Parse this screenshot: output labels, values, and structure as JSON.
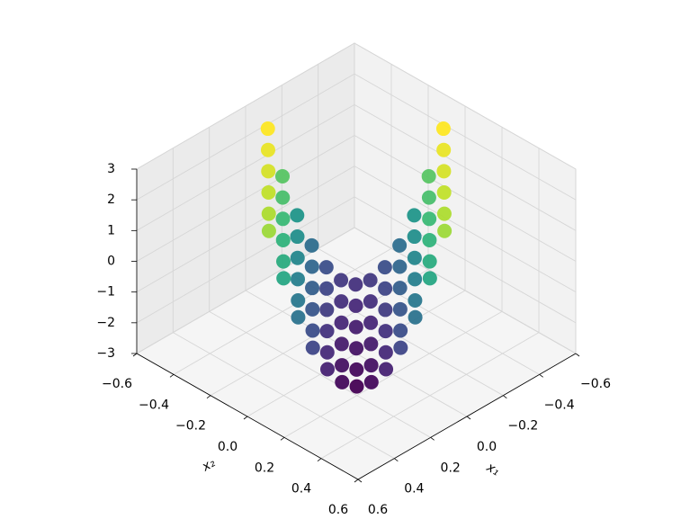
{
  "chart_data": {
    "type": "scatter3d",
    "xlabel": "x₁",
    "ylabel": "x₂",
    "xlim": [
      -0.6,
      0.6
    ],
    "ylim": [
      -0.6,
      0.6
    ],
    "zlim": [
      -3,
      3
    ],
    "xticks": [
      {
        "value": -0.6,
        "label": "−0.6"
      },
      {
        "value": -0.4,
        "label": "−0.4"
      },
      {
        "value": -0.2,
        "label": "−0.2"
      },
      {
        "value": 0,
        "label": "0.0"
      },
      0.2,
      0.4,
      0.6
    ],
    "yticks": [
      {
        "value": -0.6,
        "label": "−0.6"
      },
      {
        "value": -0.4,
        "label": "−0.4"
      },
      {
        "value": -0.2,
        "label": "−0.2"
      },
      {
        "value": 0,
        "label": "0.0"
      },
      0.2,
      0.4,
      0.6
    ],
    "zticks": [
      {
        "value": -3,
        "label": "−3"
      },
      {
        "value": -2,
        "label": "−2"
      },
      {
        "value": -1,
        "label": "−1"
      },
      0,
      1,
      2,
      3
    ],
    "colormap": "viridis",
    "grid": true,
    "points": {
      "x1": [
        -0.44,
        -0.4,
        -0.36,
        -0.32,
        -0.28,
        -0.24,
        -0.2,
        -0.16,
        -0.12,
        -0.08,
        -0.04,
        0,
        0.04,
        -0.365,
        -0.325,
        -0.285,
        -0.245,
        -0.205,
        -0.165,
        -0.125,
        -0.085,
        -0.045,
        -0.005,
        0.035,
        0.075,
        0.115,
        -0.29,
        -0.25,
        -0.21,
        -0.17,
        -0.13,
        -0.09,
        -0.05,
        -0.01,
        0.03,
        0.07,
        0.11,
        0.15,
        0.19,
        -0.215,
        -0.175,
        -0.135,
        -0.095,
        -0.055,
        -0.015,
        0.025,
        0.065,
        0.105,
        0.145,
        0.185,
        0.225,
        0.265,
        -0.14,
        -0.1,
        -0.06,
        -0.02,
        0.02,
        0.06,
        0.1,
        0.14,
        0.18,
        0.22,
        0.26,
        0.3,
        0.34,
        -0.08,
        -0.04,
        0,
        0.04,
        0.08,
        0.12,
        0.16,
        0.2,
        0.24,
        0.28,
        0.32,
        0.36,
        0.4
      ],
      "x2": [
        0.04,
        0,
        -0.04,
        -0.08,
        -0.12,
        -0.16,
        -0.2,
        -0.24,
        -0.28,
        -0.32,
        -0.36,
        -0.4,
        -0.44,
        0.115,
        0.075,
        0.035,
        -0.005,
        -0.045,
        -0.085,
        -0.125,
        -0.165,
        -0.205,
        -0.245,
        -0.285,
        -0.325,
        -0.365,
        0.19,
        0.15,
        0.11,
        0.07,
        0.03,
        -0.01,
        -0.05,
        -0.09,
        -0.13,
        -0.17,
        -0.21,
        -0.25,
        -0.29,
        0.265,
        0.225,
        0.185,
        0.145,
        0.105,
        0.065,
        0.025,
        -0.015,
        -0.055,
        -0.095,
        -0.135,
        -0.175,
        -0.215,
        0.34,
        0.3,
        0.26,
        0.22,
        0.18,
        0.14,
        0.1,
        0.06,
        0.02,
        -0.02,
        -0.06,
        -0.1,
        -0.14,
        0.4,
        0.36,
        0.32,
        0.28,
        0.24,
        0.2,
        0.16,
        0.12,
        0.08,
        0.04,
        0,
        -0.04,
        -0.08
      ],
      "z": [
        2.95,
        1.4,
        0.13,
        -0.85,
        -1.56,
        -1.98,
        -2.12,
        -1.98,
        -1.56,
        -0.85,
        0.13,
        1.4,
        2.95,
        2.77,
        1.22,
        -0.05,
        -1.03,
        -1.74,
        -2.16,
        -2.3,
        -2.16,
        -1.74,
        -1.03,
        -0.05,
        1.22,
        2.77,
        2.59,
        1.04,
        -0.23,
        -1.21,
        -1.92,
        -2.34,
        -2.48,
        -2.34,
        -1.92,
        -1.21,
        -0.23,
        1.04,
        2.59,
        2.41,
        0.86,
        -0.41,
        -1.39,
        -2.1,
        -2.52,
        -2.66,
        -2.52,
        -2.1,
        -1.39,
        -0.41,
        0.86,
        2.41,
        2.23,
        0.68,
        -0.59,
        -1.57,
        -2.28,
        -2.7,
        -2.84,
        -2.7,
        -2.28,
        -1.57,
        -0.59,
        0.68,
        2.23,
        2.08,
        0.54,
        -0.73,
        -1.72,
        -2.42,
        -2.84,
        -2.98,
        -2.84,
        -2.42,
        -1.72,
        -0.73,
        0.54,
        2.08
      ]
    }
  }
}
